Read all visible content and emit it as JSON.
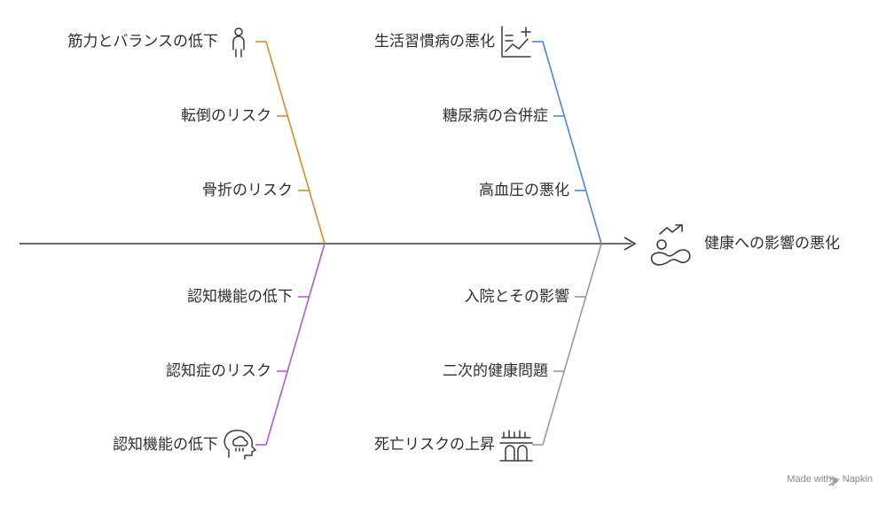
{
  "effect": {
    "label": "健康への影響の悪化",
    "icon": "trend-arrow-health-icon"
  },
  "branches": [
    {
      "id": "upper-left",
      "color": "#d98a2e",
      "head_label": "筋力とバランスの低下",
      "head_icon": "person-standing-icon",
      "items": [
        "転倒のリスク",
        "骨折のリスク"
      ]
    },
    {
      "id": "upper-right",
      "color": "#4a86e0",
      "head_label": "生活習慣病の悪化",
      "head_icon": "chart-trend-plus-icon",
      "items": [
        "糖尿病の合併症",
        "高血圧の悪化"
      ]
    },
    {
      "id": "lower-left",
      "color": "#b45ad6",
      "head_label": "認知機能の低下",
      "head_icon": "head-brain-cloud-icon",
      "items": [
        "認知機能の低下",
        "認知症のリスク"
      ]
    },
    {
      "id": "lower-right",
      "color": "#9a9a9a",
      "head_label": "死亡リスクの上昇",
      "head_icon": "grave-icon",
      "items": [
        "入院とその影響",
        "二次的健康問題"
      ]
    }
  ],
  "watermark": "Made with ⫸ Napkin"
}
